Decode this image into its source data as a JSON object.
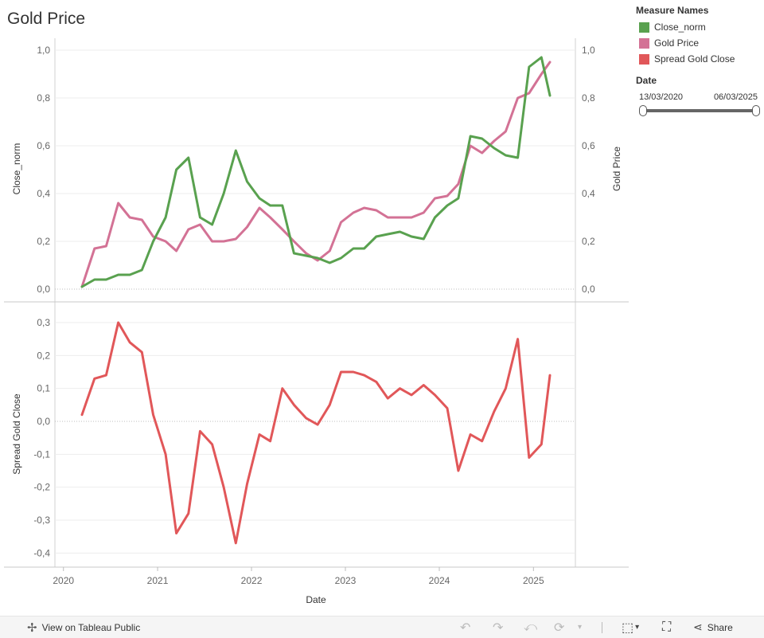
{
  "page": {
    "title": "Gold Price"
  },
  "legend": {
    "title": "Measure Names",
    "items": [
      {
        "label": "Close_norm",
        "color": "#59a14f"
      },
      {
        "label": "Gold Price",
        "color": "#d37295"
      },
      {
        "label": "Spread Gold Close",
        "color": "#e15759"
      }
    ]
  },
  "date_filter": {
    "title": "Date",
    "start": "13/03/2020",
    "end": "06/03/2025"
  },
  "toolbar": {
    "view_label": "View on Tableau Public",
    "share_label": "Share"
  },
  "chart_data": [
    {
      "type": "line",
      "ylabel": "Close_norm",
      "y2label": "Gold Price",
      "ylim": [
        0,
        1
      ],
      "yticks": [
        "0,0",
        "0,2",
        "0,4",
        "0,6",
        "0,8",
        "1,0"
      ],
      "x": [
        "2020-03-13",
        "2020-05-01",
        "2020-06-15",
        "2020-08-01",
        "2020-09-15",
        "2020-11-01",
        "2020-12-15",
        "2021-02-01",
        "2021-03-15",
        "2021-05-01",
        "2021-06-15",
        "2021-08-01",
        "2021-09-15",
        "2021-11-01",
        "2021-12-15",
        "2022-02-01",
        "2022-03-15",
        "2022-05-01",
        "2022-06-15",
        "2022-08-01",
        "2022-09-15",
        "2022-11-01",
        "2022-12-15",
        "2023-02-01",
        "2023-03-15",
        "2023-05-01",
        "2023-06-15",
        "2023-08-01",
        "2023-09-15",
        "2023-11-01",
        "2023-12-15",
        "2024-02-01",
        "2024-03-15",
        "2024-05-01",
        "2024-06-15",
        "2024-08-01",
        "2024-09-15",
        "2024-11-01",
        "2024-12-15",
        "2025-02-01",
        "2025-03-06"
      ],
      "series": [
        {
          "name": "Close_norm",
          "color": "#59a14f",
          "values": [
            0.01,
            0.04,
            0.04,
            0.06,
            0.06,
            0.08,
            0.2,
            0.3,
            0.5,
            0.55,
            0.3,
            0.27,
            0.4,
            0.58,
            0.45,
            0.38,
            0.35,
            0.35,
            0.15,
            0.14,
            0.13,
            0.11,
            0.13,
            0.17,
            0.17,
            0.22,
            0.23,
            0.24,
            0.22,
            0.21,
            0.3,
            0.35,
            0.38,
            0.64,
            0.63,
            0.59,
            0.56,
            0.55,
            0.93,
            0.97,
            0.81
          ]
        },
        {
          "name": "Gold Price",
          "color": "#d37295",
          "values": [
            0.01,
            0.17,
            0.18,
            0.36,
            0.3,
            0.29,
            0.22,
            0.2,
            0.16,
            0.25,
            0.27,
            0.2,
            0.2,
            0.21,
            0.26,
            0.34,
            0.3,
            0.25,
            0.2,
            0.15,
            0.12,
            0.16,
            0.28,
            0.32,
            0.34,
            0.33,
            0.3,
            0.3,
            0.3,
            0.32,
            0.38,
            0.39,
            0.44,
            0.6,
            0.57,
            0.62,
            0.66,
            0.8,
            0.82,
            0.9,
            0.95
          ]
        }
      ]
    },
    {
      "type": "line",
      "xlabel": "Date",
      "ylabel": "Spread Gold Close",
      "ylim": [
        -0.42,
        0.34
      ],
      "yticks": [
        "-0,4",
        "-0,3",
        "-0,2",
        "-0,1",
        "0,0",
        "0,1",
        "0,2",
        "0,3"
      ],
      "xticks": [
        "2020",
        "2021",
        "2022",
        "2023",
        "2024",
        "2025"
      ],
      "x": [
        "2020-03-13",
        "2020-05-01",
        "2020-06-15",
        "2020-08-01",
        "2020-09-15",
        "2020-11-01",
        "2020-12-15",
        "2021-02-01",
        "2021-03-15",
        "2021-05-01",
        "2021-06-15",
        "2021-08-01",
        "2021-09-15",
        "2021-11-01",
        "2021-12-15",
        "2022-02-01",
        "2022-03-15",
        "2022-05-01",
        "2022-06-15",
        "2022-08-01",
        "2022-09-15",
        "2022-11-01",
        "2022-12-15",
        "2023-02-01",
        "2023-03-15",
        "2023-05-01",
        "2023-06-15",
        "2023-08-01",
        "2023-09-15",
        "2023-11-01",
        "2023-12-15",
        "2024-02-01",
        "2024-03-15",
        "2024-05-01",
        "2024-06-15",
        "2024-08-01",
        "2024-09-15",
        "2024-11-01",
        "2024-12-15",
        "2025-02-01",
        "2025-03-06"
      ],
      "series": [
        {
          "name": "Spread Gold Close",
          "color": "#e15759",
          "values": [
            0.02,
            0.13,
            0.14,
            0.3,
            0.24,
            0.21,
            0.02,
            -0.1,
            -0.34,
            -0.28,
            -0.03,
            -0.07,
            -0.2,
            -0.37,
            -0.19,
            -0.04,
            -0.06,
            0.1,
            0.05,
            0.01,
            -0.01,
            0.05,
            0.15,
            0.15,
            0.14,
            0.12,
            0.07,
            0.1,
            0.08,
            0.11,
            0.08,
            0.04,
            -0.15,
            -0.04,
            -0.06,
            0.03,
            0.1,
            0.25,
            -0.11,
            -0.07,
            0.14
          ]
        }
      ]
    }
  ]
}
